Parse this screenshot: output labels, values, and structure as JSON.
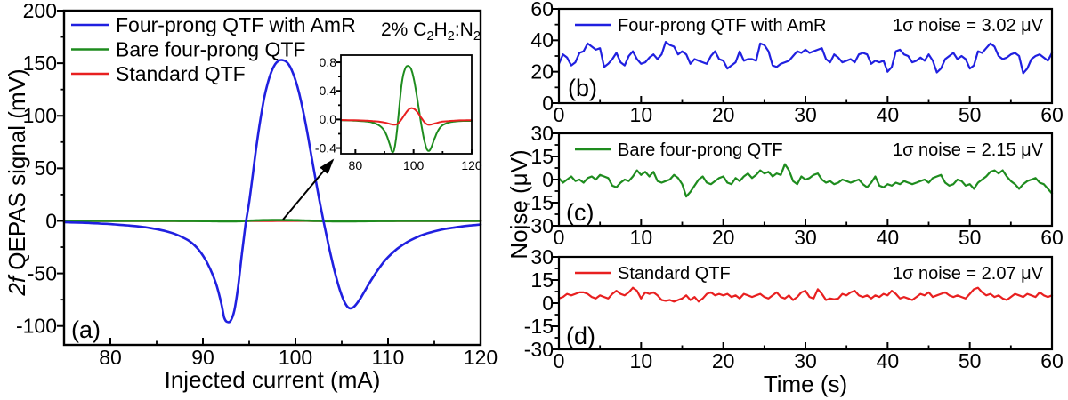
{
  "colors": {
    "blue": "#2020E0",
    "green": "#1E8C1E",
    "red": "#E82020",
    "axis": "#000000",
    "background": "#FFFFFF"
  },
  "shared": {
    "noise_ylabel": "Noise (μV)"
  },
  "chart_data": [
    {
      "id": "a",
      "type": "line",
      "panel_label": "(a)",
      "xlabel": "Injected current (mA)",
      "ylabel": "2f QEPAS signal (mV)",
      "ylabel_parts": [
        {
          "text": "2f",
          "italic": true
        },
        {
          "text": " QEPAS signal (mV)"
        }
      ],
      "annotation": "2% C2H2:N2",
      "annotation_parts": [
        {
          "text": "2% C"
        },
        {
          "text": "2",
          "sub": true
        },
        {
          "text": "H"
        },
        {
          "text": "2",
          "sub": true
        },
        {
          "text": ":N"
        },
        {
          "text": "2",
          "sub": true
        }
      ],
      "xlim": [
        75,
        120
      ],
      "ylim": [
        -118,
        200
      ],
      "x_ticks_major": [
        80,
        90,
        100,
        110,
        120
      ],
      "x_ticks_minor": [
        85,
        95,
        105,
        115
      ],
      "y_ticks_major": [
        -100,
        -50,
        0,
        50,
        100,
        150,
        200
      ],
      "y_ticks_minor": [
        -75,
        -25,
        25,
        75,
        125,
        175
      ],
      "legend": [
        {
          "label": "Four-prong QTF with AmR",
          "color_key": "blue"
        },
        {
          "label": "Bare four-prong  QTF",
          "color_key": "green"
        },
        {
          "label": "Standard QTF",
          "color_key": "red"
        }
      ],
      "series": [
        {
          "name": "Standard QTF",
          "color_key": "red",
          "smooth": true,
          "data_ref": "a-inset:1"
        },
        {
          "name": "Bare four-prong QTF",
          "color_key": "green",
          "smooth": true,
          "data_ref": "a-inset:0"
        },
        {
          "name": "Four-prong QTF with AmR",
          "color_key": "blue",
          "smooth": true,
          "x": [
            75,
            76,
            77,
            78,
            79,
            80,
            81,
            82,
            83,
            84,
            85,
            86,
            87,
            88,
            88.5,
            89,
            89.5,
            90,
            90.5,
            91,
            91.5,
            92,
            92.3,
            92.6,
            93,
            93.4,
            93.8,
            94.2,
            94.6,
            95,
            95.4,
            95.8,
            96.2,
            96.6,
            97,
            97.4,
            97.8,
            98.2,
            98.6,
            99,
            99.4,
            99.8,
            100.2,
            100.6,
            101,
            101.4,
            101.8,
            102.2,
            102.6,
            103,
            103.4,
            103.8,
            104.2,
            104.6,
            105,
            105.4,
            105.8,
            106.2,
            106.6,
            107,
            107.5,
            108,
            108.5,
            109,
            109.5,
            110,
            111,
            112,
            113,
            114,
            115,
            116,
            117,
            118,
            119,
            120
          ],
          "y": [
            -1.2,
            -1.5,
            -1.8,
            -2.2,
            -2.6,
            -3.1,
            -3.7,
            -4.4,
            -5.3,
            -6.4,
            -7.9,
            -9.8,
            -12.5,
            -16.5,
            -19,
            -22.5,
            -27,
            -33,
            -40.5,
            -50,
            -62,
            -79,
            -92,
            -96,
            -95,
            -85,
            -63,
            -32,
            -4,
            18,
            45,
            72,
            96,
            116,
            131,
            142,
            149,
            152.5,
            153,
            151.5,
            147,
            139,
            128,
            114,
            97,
            78,
            58,
            38,
            19,
            1,
            -16,
            -32,
            -47,
            -60,
            -71,
            -79,
            -83,
            -82.5,
            -79,
            -74,
            -66.5,
            -59,
            -52,
            -45.5,
            -39.5,
            -34.5,
            -26.5,
            -20.5,
            -16,
            -12.5,
            -10,
            -8,
            -6.5,
            -5.3,
            -4.3,
            -3.5
          ]
        }
      ]
    },
    {
      "id": "a-inset",
      "type": "line",
      "xlim": [
        75,
        120
      ],
      "ylim": [
        -0.48,
        0.9
      ],
      "x_ticks_major": [
        80,
        100,
        120
      ],
      "x_ticks_minor": [
        90,
        110
      ],
      "y_ticks_major": [
        -0.4,
        0,
        0.4,
        0.8
      ],
      "y_tick_labels": [
        "-0.4",
        "0.0",
        "0.4",
        "0.8"
      ],
      "y_ticks_minor": [
        -0.2,
        0.2,
        0.6
      ],
      "series": [
        {
          "name": "Bare four-prong QTF",
          "color_key": "green",
          "smooth": true,
          "x": [
            75,
            77,
            79,
            81,
            83,
            85,
            86,
            87,
            88,
            89,
            90,
            90.5,
            91,
            91.5,
            92,
            92.4,
            92.8,
            93.2,
            93.6,
            94,
            94.4,
            94.8,
            95.2,
            95.6,
            96,
            96.5,
            97,
            97.5,
            98,
            98.4,
            98.8,
            99.2,
            99.6,
            100,
            100.5,
            101,
            101.5,
            102,
            102.5,
            103,
            103.5,
            104,
            104.4,
            104.8,
            105.2,
            105.6,
            106,
            106.5,
            107,
            107.5,
            108,
            109,
            110,
            111,
            112,
            113,
            114,
            115,
            117,
            120
          ],
          "y": [
            -0.01,
            -0.012,
            -0.015,
            -0.02,
            -0.025,
            -0.035,
            -0.045,
            -0.06,
            -0.08,
            -0.11,
            -0.16,
            -0.2,
            -0.25,
            -0.31,
            -0.37,
            -0.43,
            -0.46,
            -0.44,
            -0.37,
            -0.26,
            -0.12,
            0.05,
            0.22,
            0.38,
            0.52,
            0.63,
            0.7,
            0.74,
            0.75,
            0.745,
            0.73,
            0.7,
            0.65,
            0.58,
            0.48,
            0.36,
            0.23,
            0.1,
            -0.03,
            -0.15,
            -0.26,
            -0.34,
            -0.4,
            -0.43,
            -0.44,
            -0.43,
            -0.4,
            -0.35,
            -0.29,
            -0.24,
            -0.19,
            -0.12,
            -0.08,
            -0.06,
            -0.045,
            -0.035,
            -0.03,
            -0.025,
            -0.02,
            -0.02
          ]
        },
        {
          "name": "Standard QTF",
          "color_key": "red",
          "smooth": true,
          "x": [
            75,
            78,
            81,
            84,
            86,
            88,
            90,
            91,
            92,
            93,
            94,
            94.5,
            95,
            95.5,
            96,
            96.5,
            97,
            97.5,
            98,
            98.5,
            99,
            99.5,
            100,
            100.5,
            101,
            101.5,
            102,
            102.5,
            103,
            103.5,
            104,
            104.5,
            105,
            105.5,
            106,
            107,
            108,
            109,
            110,
            112,
            114,
            116,
            118,
            120
          ],
          "y": [
            -0.008,
            -0.01,
            -0.013,
            -0.018,
            -0.022,
            -0.03,
            -0.042,
            -0.052,
            -0.063,
            -0.072,
            -0.07,
            -0.06,
            -0.042,
            -0.018,
            0.01,
            0.04,
            0.072,
            0.1,
            0.125,
            0.145,
            0.155,
            0.158,
            0.152,
            0.138,
            0.118,
            0.092,
            0.063,
            0.032,
            0.002,
            -0.026,
            -0.05,
            -0.065,
            -0.073,
            -0.075,
            -0.072,
            -0.06,
            -0.048,
            -0.038,
            -0.03,
            -0.022,
            -0.017,
            -0.013,
            -0.011,
            -0.01
          ]
        }
      ]
    },
    {
      "id": "b",
      "type": "line",
      "panel_label": "(b)",
      "annotation": "1σ noise = 3.02 μV",
      "xlim": [
        0,
        60
      ],
      "ylim": [
        0,
        60
      ],
      "x_ticks_major": [
        0,
        10,
        20,
        30,
        40,
        50,
        60
      ],
      "x_ticks_minor": [
        5,
        15,
        25,
        35,
        45,
        55
      ],
      "y_ticks_major": [
        0,
        20,
        40,
        60
      ],
      "y_ticks_minor": [
        10,
        30,
        50
      ],
      "legend": [
        {
          "label": "Four-prong QTF with AmR",
          "color_key": "blue"
        }
      ],
      "series": [
        {
          "name": "Four-prong QTF with AmR",
          "color_key": "blue",
          "x_start": 0,
          "x_step": 0.5,
          "y": [
            25,
            31,
            29,
            24,
            26,
            32,
            33,
            38,
            36,
            34,
            35,
            23,
            25,
            28,
            32,
            26,
            24,
            30,
            33,
            28,
            25,
            26,
            29,
            31,
            28,
            31,
            39,
            37,
            36,
            31,
            33,
            31,
            25,
            28,
            27,
            26,
            25,
            30,
            33,
            28,
            27,
            22,
            24,
            26,
            33,
            27,
            28,
            28,
            27,
            38,
            37,
            33,
            24,
            23,
            25,
            26,
            27,
            30,
            33,
            32,
            34,
            32,
            33,
            34,
            35,
            28,
            26,
            31,
            29,
            26,
            27,
            28,
            26,
            31,
            32,
            31,
            25,
            27,
            26,
            27,
            20,
            23,
            33,
            34,
            31,
            30,
            26,
            27,
            29,
            27,
            31,
            27,
            19.5,
            22,
            28,
            30,
            32,
            28,
            30,
            28,
            22,
            24,
            33,
            32,
            35,
            38,
            36,
            30,
            28,
            29,
            31,
            32,
            30,
            19,
            22,
            28,
            30,
            31,
            29,
            27,
            32
          ]
        }
      ]
    },
    {
      "id": "c",
      "type": "line",
      "panel_label": "(c)",
      "annotation": "1σ noise = 2.15 μV",
      "xlim": [
        0,
        60
      ],
      "ylim": [
        -30,
        30
      ],
      "x_ticks_major": [
        0,
        10,
        20,
        30,
        40,
        50,
        60
      ],
      "x_ticks_minor": [
        5,
        15,
        25,
        35,
        45,
        55
      ],
      "y_ticks_major": [
        -30,
        -15,
        0,
        15,
        30
      ],
      "y_ticks_minor": [
        -22.5,
        -7.5,
        7.5,
        22.5
      ],
      "legend": [
        {
          "label": "Bare four-prong QTF",
          "color_key": "green"
        }
      ],
      "series": [
        {
          "name": "Bare four-prong QTF",
          "color_key": "green",
          "x_start": 0,
          "x_step": 0.5,
          "y": [
            1,
            -2,
            0,
            2,
            -1,
            0,
            -2,
            1,
            2,
            0,
            3,
            2,
            1,
            -4,
            -5,
            -2,
            0,
            -1,
            2,
            6,
            3,
            5,
            2,
            5,
            -1,
            -2,
            -1,
            0,
            3,
            1,
            -3,
            -11,
            -8,
            -4,
            0,
            2,
            -2,
            -3,
            -1,
            1,
            2,
            -2,
            -3,
            1,
            -1,
            2,
            4,
            1,
            3,
            6,
            4,
            5,
            2,
            4,
            3,
            10,
            6,
            -1,
            -3,
            2,
            0,
            1,
            3,
            4,
            0,
            -2,
            -1,
            -3,
            -2,
            0,
            -1,
            -2,
            -1,
            0,
            -3,
            -5,
            -2,
            2,
            -4,
            -5,
            -3,
            -4,
            -2,
            -3,
            -1,
            -2,
            -3,
            -2,
            -1,
            0,
            -2,
            1,
            2,
            3,
            -2,
            -4,
            -3,
            0,
            -1,
            -4,
            -3,
            -6,
            -2,
            0,
            2,
            5,
            6,
            4,
            6,
            2,
            -1,
            -3,
            -6,
            -3,
            -1,
            0,
            1,
            -2,
            -3,
            -6,
            -9
          ]
        }
      ]
    },
    {
      "id": "d",
      "type": "line",
      "panel_label": "(d)",
      "xlabel": "Time (s)",
      "annotation": "1σ noise = 2.07 μV",
      "xlim": [
        0,
        60
      ],
      "ylim": [
        -30,
        30
      ],
      "x_ticks_major": [
        0,
        10,
        20,
        30,
        40,
        50,
        60
      ],
      "x_ticks_minor": [
        5,
        15,
        25,
        35,
        45,
        55
      ],
      "y_ticks_major": [
        -30,
        -15,
        0,
        15,
        30
      ],
      "y_ticks_minor": [
        -22.5,
        -7.5,
        7.5,
        22.5
      ],
      "legend": [
        {
          "label": "Standard QTF",
          "color_key": "red"
        }
      ],
      "series": [
        {
          "name": "Standard QTF",
          "color_key": "red",
          "x_start": 0,
          "x_step": 0.5,
          "y": [
            3,
            4,
            6,
            5,
            6,
            7,
            7,
            6,
            4,
            3,
            5,
            4,
            3,
            6,
            8,
            6,
            5,
            7,
            10,
            8,
            3,
            7,
            6,
            7,
            5,
            2,
            1.5,
            2,
            1,
            2,
            3,
            5,
            2,
            4,
            1,
            3,
            6,
            7,
            5,
            6,
            5,
            6,
            4,
            5,
            3,
            6,
            5,
            4,
            5,
            6,
            4,
            3,
            5,
            7,
            4,
            3,
            5,
            2,
            4,
            7,
            8,
            4,
            3,
            9,
            6,
            2,
            3,
            2.5,
            3,
            6,
            5,
            7,
            8,
            5,
            4,
            5,
            3,
            5,
            4,
            6,
            5,
            8,
            6,
            3,
            4,
            3,
            2,
            4,
            6,
            5,
            7,
            4,
            5,
            6,
            7,
            5,
            4,
            5,
            4,
            3,
            6,
            9,
            10,
            7,
            5,
            6,
            4,
            5,
            3,
            2,
            4,
            6,
            5,
            4,
            6,
            5,
            4,
            7,
            5,
            4,
            5
          ]
        }
      ]
    }
  ]
}
